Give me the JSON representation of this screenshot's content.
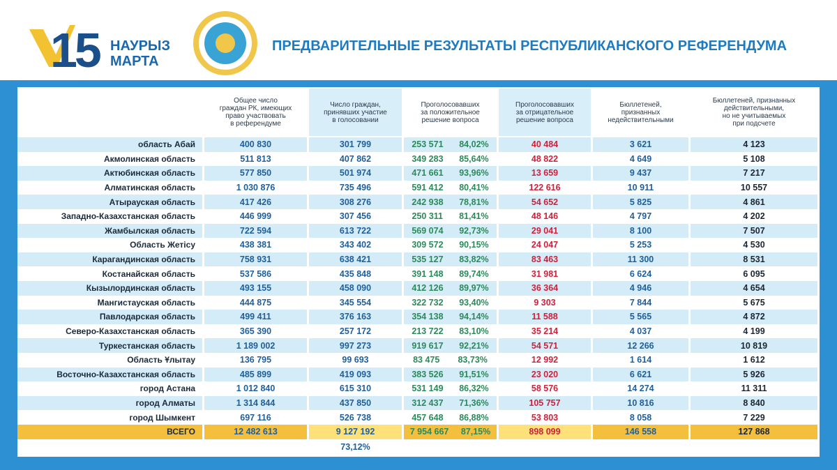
{
  "header": {
    "logo_number": "15",
    "logo_line1": "НАУРЫЗ",
    "logo_line2": "МАРТА",
    "title": "ПРЕДВАРИТЕЛЬНЫЕ РЕЗУЛЬТАТЫ РЕСПУБЛИКАНСКОГО РЕФЕРЕНДУМА"
  },
  "table": {
    "columns": [
      "Общее число\nграждан РК, имеющих\nправо участвовать\nв референдуме",
      "Число граждан,\nпринявших участие\nв голосовании",
      "Проголосовавших\nза положительное\nрешение вопроса",
      "Проголосовавших\nза отрицательное\nрешение вопроса",
      "Бюллетеней,\nпризнанных\nнедействительными",
      "Бюллетеней, признанных\nдействительными,\nно не учитываемых\nпри подсчете"
    ],
    "rows": [
      [
        "область Абай",
        "400 830",
        "301 799",
        "253 571",
        "84,02%",
        "40 484",
        "3 621",
        "4 123"
      ],
      [
        "Акмолинская область",
        "511 813",
        "407 862",
        "349 283",
        "85,64%",
        "48 822",
        "4 649",
        "5 108"
      ],
      [
        "Актюбинская область",
        "577 850",
        "501 974",
        "471 661",
        "93,96%",
        "13 659",
        "9 437",
        "7 217"
      ],
      [
        "Алматинская область",
        "1 030 876",
        "735 496",
        "591 412",
        "80,41%",
        "122 616",
        "10 911",
        "10 557"
      ],
      [
        "Атырауская область",
        "417 426",
        "308 276",
        "242 938",
        "78,81%",
        "54 652",
        "5 825",
        "4 861"
      ],
      [
        "Западно-Казахстанская область",
        "446 999",
        "307 456",
        "250 311",
        "81,41%",
        "48 146",
        "4 797",
        "4 202"
      ],
      [
        "Жамбылская область",
        "722 594",
        "613 722",
        "569 074",
        "92,73%",
        "29 041",
        "8 100",
        "7 507"
      ],
      [
        "Область Жетісу",
        "438 381",
        "343 402",
        "309 572",
        "90,15%",
        "24 047",
        "5 253",
        "4 530"
      ],
      [
        "Карагандинская область",
        "758 931",
        "638 421",
        "535 127",
        "83,82%",
        "83 463",
        "11 300",
        "8 531"
      ],
      [
        "Костанайская область",
        "537 586",
        "435 848",
        "391 148",
        "89,74%",
        "31 981",
        "6 624",
        "6 095"
      ],
      [
        "Кызылординская область",
        "493 155",
        "458 090",
        "412 126",
        "89,97%",
        "36 364",
        "4 946",
        "4 654"
      ],
      [
        "Мангистауская область",
        "444 875",
        "345 554",
        "322 732",
        "93,40%",
        "9 303",
        "7 844",
        "5 675"
      ],
      [
        "Павлодарская область",
        "499 411",
        "376 163",
        "354 138",
        "94,14%",
        "11 588",
        "5 565",
        "4 872"
      ],
      [
        "Северо-Казахстанская область",
        "365 390",
        "257 172",
        "213 722",
        "83,10%",
        "35 214",
        "4 037",
        "4 199"
      ],
      [
        "Туркестанская область",
        "1 189 002",
        "997 273",
        "919 617",
        "92,21%",
        "54 571",
        "12 266",
        "10 819"
      ],
      [
        "Область Ұлытау",
        "136 795",
        "99 693",
        "83 475",
        "83,73%",
        "12 992",
        "1 614",
        "1 612"
      ],
      [
        "Восточно-Казахстанская область",
        "485 899",
        "419 093",
        "383 526",
        "91,51%",
        "23 020",
        "6 621",
        "5 926"
      ],
      [
        "город Астана",
        "1 012 840",
        "615 310",
        "531 149",
        "86,32%",
        "58 576",
        "14 274",
        "11 311"
      ],
      [
        "город Алматы",
        "1 314 844",
        "437 850",
        "312 437",
        "71,36%",
        "105 757",
        "10 816",
        "8 840"
      ],
      [
        "город Шымкент",
        "697 116",
        "526 738",
        "457 648",
        "86,88%",
        "53 803",
        "8 058",
        "7 229"
      ]
    ],
    "total": [
      "ВСЕГО",
      "12 482 613",
      "9 127 192",
      "7 954 667",
      "87,15%",
      "898 099",
      "146 558",
      "127 868"
    ],
    "turnout": "73,12%"
  }
}
